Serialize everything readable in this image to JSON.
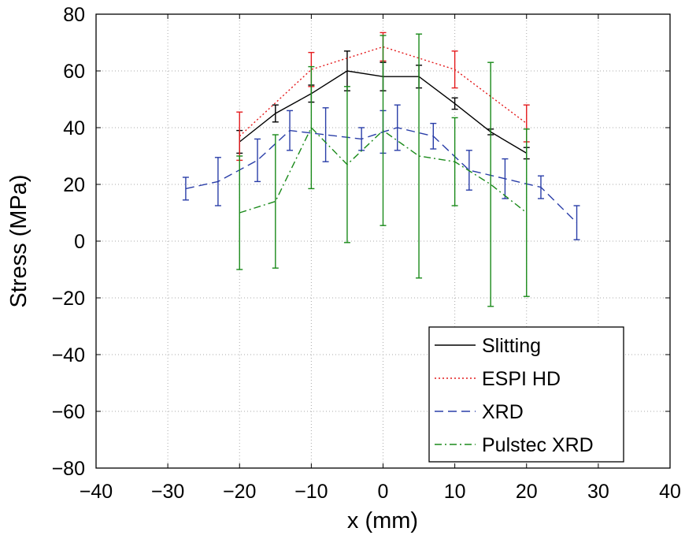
{
  "chart_data": {
    "type": "line",
    "title": "",
    "xlabel": "x (mm)",
    "ylabel": "Stress (MPa)",
    "xlim": [
      -40,
      40
    ],
    "ylim": [
      -80,
      80
    ],
    "xticks": [
      -40,
      -30,
      -20,
      -10,
      0,
      10,
      20,
      30,
      40
    ],
    "yticks": [
      -80,
      -60,
      -40,
      -20,
      0,
      20,
      40,
      60,
      80
    ],
    "xtick_labels": [
      "−40",
      "−30",
      "−20",
      "−10",
      "0",
      "10",
      "20",
      "30",
      "40"
    ],
    "ytick_labels": [
      "−80",
      "−60",
      "−40",
      "−20",
      "0",
      "20",
      "40",
      "60",
      "80"
    ],
    "grid": true,
    "legend_position": "bottom-right",
    "series": [
      {
        "name": "Slitting",
        "color": "#000000",
        "dash": "solid",
        "x": [
          -20,
          -15,
          -10,
          -5,
          0,
          5,
          10,
          15,
          20
        ],
        "y": [
          35,
          45,
          52,
          60,
          58,
          58,
          48.5,
          38.5,
          31
        ],
        "err": [
          4,
          3,
          3,
          7,
          5,
          4,
          2,
          1,
          2
        ]
      },
      {
        "name": "ESPI HD",
        "color": "#e41a1c",
        "dash": "dotted",
        "x": [
          -20,
          -10,
          0,
          10,
          20
        ],
        "y": [
          37,
          60.5,
          68.5,
          60.5,
          41.5
        ],
        "err": [
          8.5,
          6,
          5,
          6.5,
          6.5
        ]
      },
      {
        "name": "XRD",
        "color": "#2a3ea8",
        "dash": "dashed",
        "x": [
          -27.5,
          -23,
          -17.5,
          -13,
          -8,
          -3,
          0,
          2,
          7,
          12,
          17,
          22,
          27
        ],
        "y": [
          18.5,
          21,
          28.5,
          39,
          37.5,
          36,
          38.5,
          40,
          37,
          25,
          22,
          19,
          6.5
        ],
        "err": [
          4,
          8.5,
          7.5,
          7,
          9.5,
          4,
          7.5,
          8,
          4.5,
          7,
          7,
          4,
          6
        ]
      },
      {
        "name": "Pulstec XRD",
        "color": "#1a8a1a",
        "dash": "dashdot",
        "x": [
          -20,
          -15,
          -10,
          -5,
          0,
          5,
          10,
          15,
          20
        ],
        "y": [
          10,
          14,
          40,
          27,
          39,
          30,
          28,
          20,
          10
        ],
        "err": [
          20,
          23.5,
          21.5,
          27.5,
          33.5,
          43,
          15.5,
          43,
          29.5
        ]
      }
    ]
  }
}
